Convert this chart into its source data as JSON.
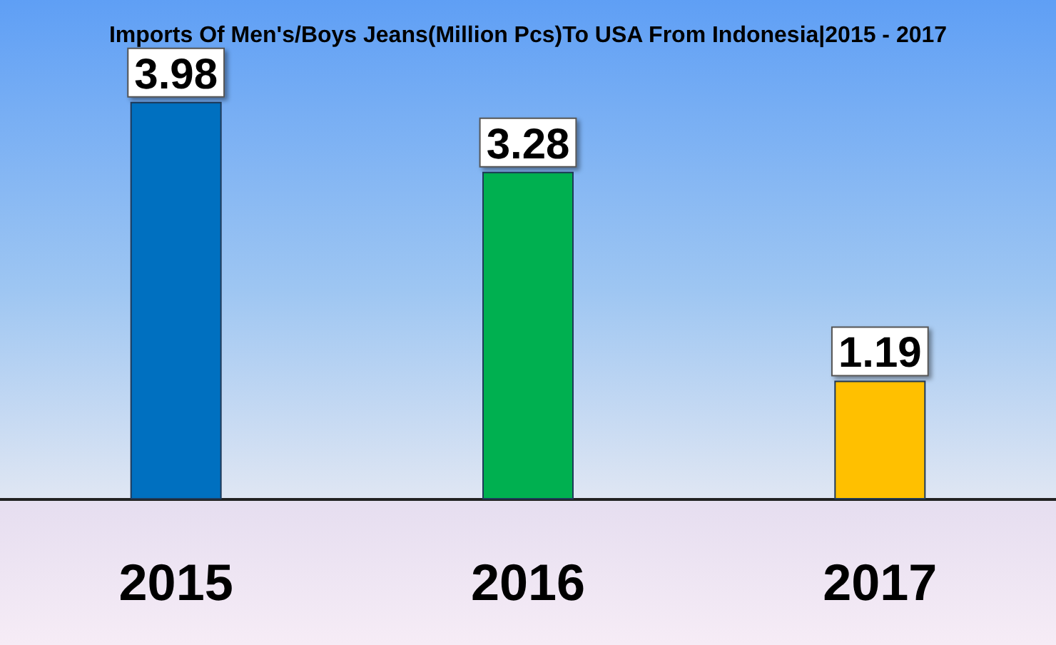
{
  "chart_data": {
    "type": "bar",
    "title": "Imports Of Men's/Boys Jeans(Million Pcs)To USA From Indonesia|2015 - 2017",
    "categories": [
      "2015",
      "2016",
      "2017"
    ],
    "values": [
      3.98,
      3.28,
      1.19
    ],
    "colors": [
      "#0070c0",
      "#00b050",
      "#ffc000"
    ],
    "data_labels": true
  }
}
